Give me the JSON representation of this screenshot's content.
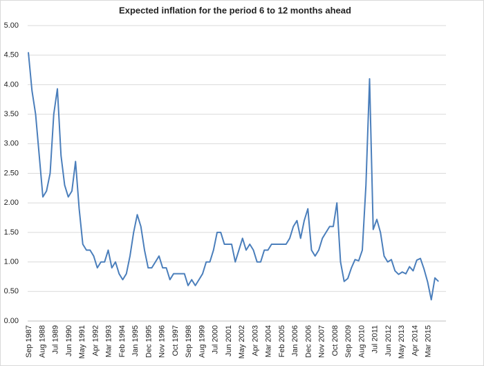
{
  "chart_data": {
    "type": "line",
    "title": "Expected inflation for the period 6 to 12 months ahead",
    "x": [
      "Sep 1987",
      "Dec 1987",
      "Mar 1988",
      "Jun 1988",
      "Sep 1988",
      "Dec 1988",
      "Mar 1989",
      "Jun 1989",
      "Sep 1989",
      "Dec 1989",
      "Mar 1990",
      "Jun 1990",
      "Sep 1990",
      "Dec 1990",
      "Mar 1991",
      "Jun 1991",
      "Sep 1991",
      "Dec 1991",
      "Mar 1992",
      "Jun 1992",
      "Sep 1992",
      "Dec 1992",
      "Mar 1993",
      "Jun 1993",
      "Sep 1993",
      "Dec 1993",
      "Mar 1994",
      "Jun 1994",
      "Sep 1994",
      "Dec 1994",
      "Mar 1995",
      "Jun 1995",
      "Sep 1995",
      "Dec 1995",
      "Mar 1996",
      "Jun 1996",
      "Sep 1996",
      "Dec 1996",
      "Mar 1997",
      "Jun 1997",
      "Sep 1997",
      "Dec 1997",
      "Mar 1998",
      "Jun 1998",
      "Sep 1998",
      "Dec 1998",
      "Mar 1999",
      "Jun 1999",
      "Sep 1999",
      "Dec 1999",
      "Mar 2000",
      "Jun 2000",
      "Sep 2000",
      "Dec 2000",
      "Mar 2001",
      "Jun 2001",
      "Sep 2001",
      "Dec 2001",
      "Mar 2002",
      "Jun 2002",
      "Sep 2002",
      "Dec 2002",
      "Mar 2003",
      "Jun 2003",
      "Sep 2003",
      "Dec 2003",
      "Mar 2004",
      "Jun 2004",
      "Sep 2004",
      "Dec 2004",
      "Mar 2005",
      "Jun 2005",
      "Sep 2005",
      "Dec 2005",
      "Mar 2006",
      "Jun 2006",
      "Sep 2006",
      "Dec 2006",
      "Mar 2007",
      "Jun 2007",
      "Sep 2007",
      "Dec 2007",
      "Mar 2008",
      "Jun 2008",
      "Sep 2008",
      "Dec 2008",
      "Mar 2009",
      "Jun 2009",
      "Sep 2009",
      "Dec 2009",
      "Mar 2010",
      "Jun 2010",
      "Sep 2010",
      "Dec 2010",
      "Mar 2011",
      "Jun 2011",
      "Sep 2011",
      "Dec 2011",
      "Mar 2012",
      "Jun 2012",
      "Sep 2012",
      "Dec 2012",
      "Mar 2013",
      "Jun 2013",
      "Sep 2013",
      "Dec 2013",
      "Mar 2014",
      "Jun 2014",
      "Sep 2014",
      "Dec 2014",
      "Mar 2015",
      "Jun 2015",
      "Sep 2015",
      "Dec 2015"
    ],
    "series": [
      {
        "color": "#4a7ebb",
        "values": [
          4.55,
          3.9,
          3.5,
          2.8,
          2.1,
          2.2,
          2.5,
          3.5,
          3.93,
          2.8,
          2.3,
          2.1,
          2.2,
          2.7,
          1.9,
          1.3,
          1.2,
          1.2,
          1.1,
          0.9,
          1.0,
          1.0,
          1.2,
          0.9,
          1.0,
          0.8,
          0.7,
          0.8,
          1.1,
          1.5,
          1.8,
          1.6,
          1.2,
          0.9,
          0.9,
          1.0,
          1.1,
          0.9,
          0.9,
          0.7,
          0.8,
          0.8,
          0.8,
          0.8,
          0.6,
          0.7,
          0.6,
          0.7,
          0.8,
          1.0,
          1.0,
          1.2,
          1.5,
          1.5,
          1.3,
          1.3,
          1.3,
          1.0,
          1.2,
          1.4,
          1.2,
          1.3,
          1.2,
          1.0,
          1.0,
          1.2,
          1.2,
          1.3,
          1.3,
          1.3,
          1.3,
          1.3,
          1.4,
          1.6,
          1.7,
          1.4,
          1.7,
          1.9,
          1.2,
          1.1,
          1.2,
          1.4,
          1.5,
          1.6,
          1.6,
          2.0,
          1.0,
          0.67,
          0.72,
          0.9,
          1.04,
          1.02,
          1.2,
          2.3,
          4.1,
          1.55,
          1.72,
          1.5,
          1.1,
          1.0,
          1.04,
          0.85,
          0.79,
          0.83,
          0.8,
          0.92,
          0.85,
          1.03,
          1.06,
          0.88,
          0.66,
          0.36,
          0.73,
          0.67
        ]
      }
    ],
    "xticks": [
      "Sep 1987",
      "Aug 1988",
      "Jul 1989",
      "Jun 1990",
      "May 1991",
      "Apr 1992",
      "Mar 1993",
      "Feb 1994",
      "Jan 1995",
      "Dec 1995",
      "Nov 1996",
      "Oct 1997",
      "Sep 1998",
      "Aug 1999",
      "Jul 2000",
      "Jun 2001",
      "May 2002",
      "Apr 2003",
      "Mar 2004",
      "Feb 2005",
      "Jan 2006",
      "Dec 2006",
      "Nov 2007",
      "Oct 2008",
      "Sep 2009",
      "Aug 2010",
      "Jul 2011",
      "Jun 2012",
      "May 2013",
      "Apr 2014",
      "Mar 2015"
    ],
    "ylim": [
      0,
      5
    ],
    "yticks": [
      {
        "value": 0,
        "label": "0.00"
      },
      {
        "value": 0.5,
        "label": "0.50"
      },
      {
        "value": 1,
        "label": "1.00"
      },
      {
        "value": 1.5,
        "label": "1.50"
      },
      {
        "value": 2,
        "label": "2.00"
      },
      {
        "value": 2.5,
        "label": "2.50"
      },
      {
        "value": 3,
        "label": "3.00"
      },
      {
        "value": 3.5,
        "label": "3.50"
      },
      {
        "value": 4,
        "label": "4.00"
      },
      {
        "value": 4.5,
        "label": "4.50"
      },
      {
        "value": 5,
        "label": "5.00"
      }
    ],
    "grid": true
  }
}
